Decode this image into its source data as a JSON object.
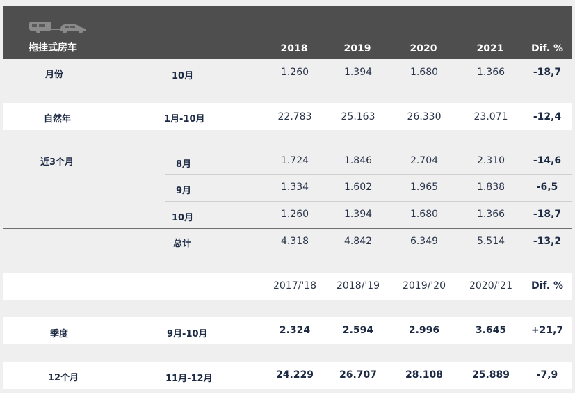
{
  "header": {
    "title": "拖挂式房车",
    "cols": [
      "2018",
      "2019",
      "2020",
      "2021",
      "Dif. %"
    ]
  },
  "rows": {
    "month": {
      "label": "月份",
      "sub": "10月",
      "v": [
        "1.260",
        "1.394",
        "1.680",
        "1.366"
      ],
      "dif": "-18,7"
    },
    "ytd": {
      "label": "自然年",
      "sub": "1月-10月",
      "v": [
        "22.783",
        "25.163",
        "26.330",
        "23.071"
      ],
      "dif": "-12,4"
    },
    "l3_label": "近3个月",
    "aug": {
      "sub": "8月",
      "v": [
        "1.724",
        "1.846",
        "2.704",
        "2.310"
      ],
      "dif": "-14,6"
    },
    "sep": {
      "sub": "9月",
      "v": [
        "1.334",
        "1.602",
        "1.965",
        "1.838"
      ],
      "dif": "-6,5"
    },
    "oct": {
      "sub": "10月",
      "v": [
        "1.260",
        "1.394",
        "1.680",
        "1.366"
      ],
      "dif": "-18,7"
    },
    "total": {
      "sub": "总计",
      "v": [
        "4.318",
        "4.842",
        "6.349",
        "5.514"
      ],
      "dif": "-13,2"
    }
  },
  "season_header": {
    "cols": [
      "2017/'18",
      "2018/'19",
      "2019/'20",
      "2020/'21",
      "Dif. %"
    ]
  },
  "season": {
    "q": {
      "label": "季度",
      "sub": "9月-10月",
      "v": [
        "2.324",
        "2.594",
        "2.996",
        "3.645"
      ],
      "dif": "+21,7"
    },
    "twelve": {
      "label": "12个月",
      "sub": "11月-12月",
      "v": [
        "24.229",
        "26.707",
        "28.108",
        "25.889"
      ],
      "dif": "-7,9"
    }
  }
}
